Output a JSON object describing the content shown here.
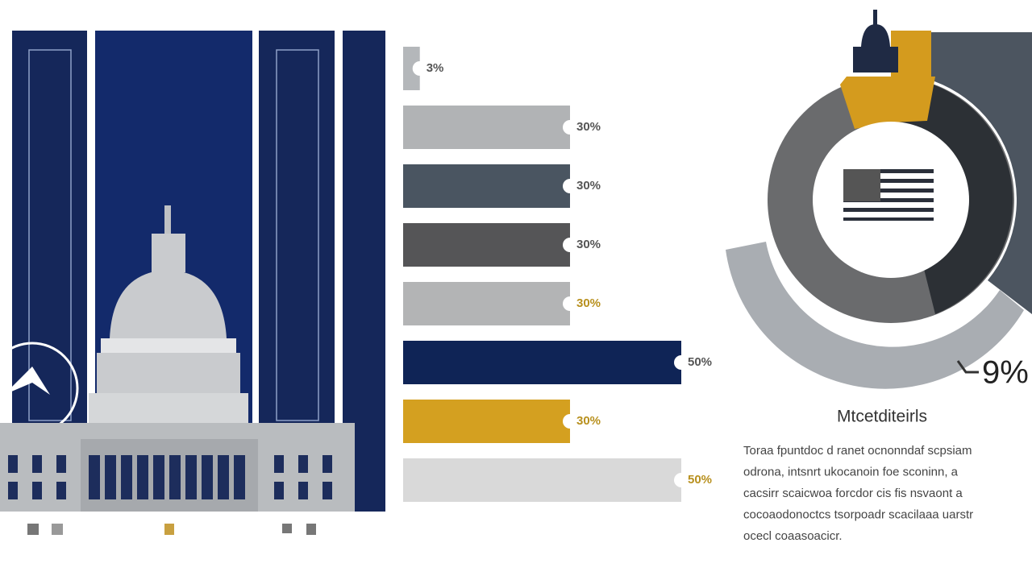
{
  "chart_data": {
    "type": "bar",
    "values": [
      3,
      30,
      30,
      30,
      30,
      50,
      30,
      50
    ],
    "value_labels": [
      "3%",
      "30%",
      "30%",
      "30%",
      "30%",
      "50%",
      "30%",
      "50%"
    ],
    "colors": [
      "#b4b7ba",
      "#b1b3b5",
      "#4a5561",
      "#555557",
      "#b3b4b5",
      "#0f2456",
      "#d4a020",
      "#d9d9d9"
    ],
    "annotations": [
      "9%"
    ],
    "caption_title": "Mtcetditeirls",
    "caption_lines": [
      "Toraa fpuntdoc d ranet ocnonndaf scpsiam",
      "odrona, intsnrt ukocanoin foe sconinn, a",
      "cacsirr scaicwoa forcdor cis fis nsvaont a",
      "cocoaodonoctcs tsorpoadr scacilaaa uarstr",
      "ocecl coaasoacicr."
    ]
  }
}
